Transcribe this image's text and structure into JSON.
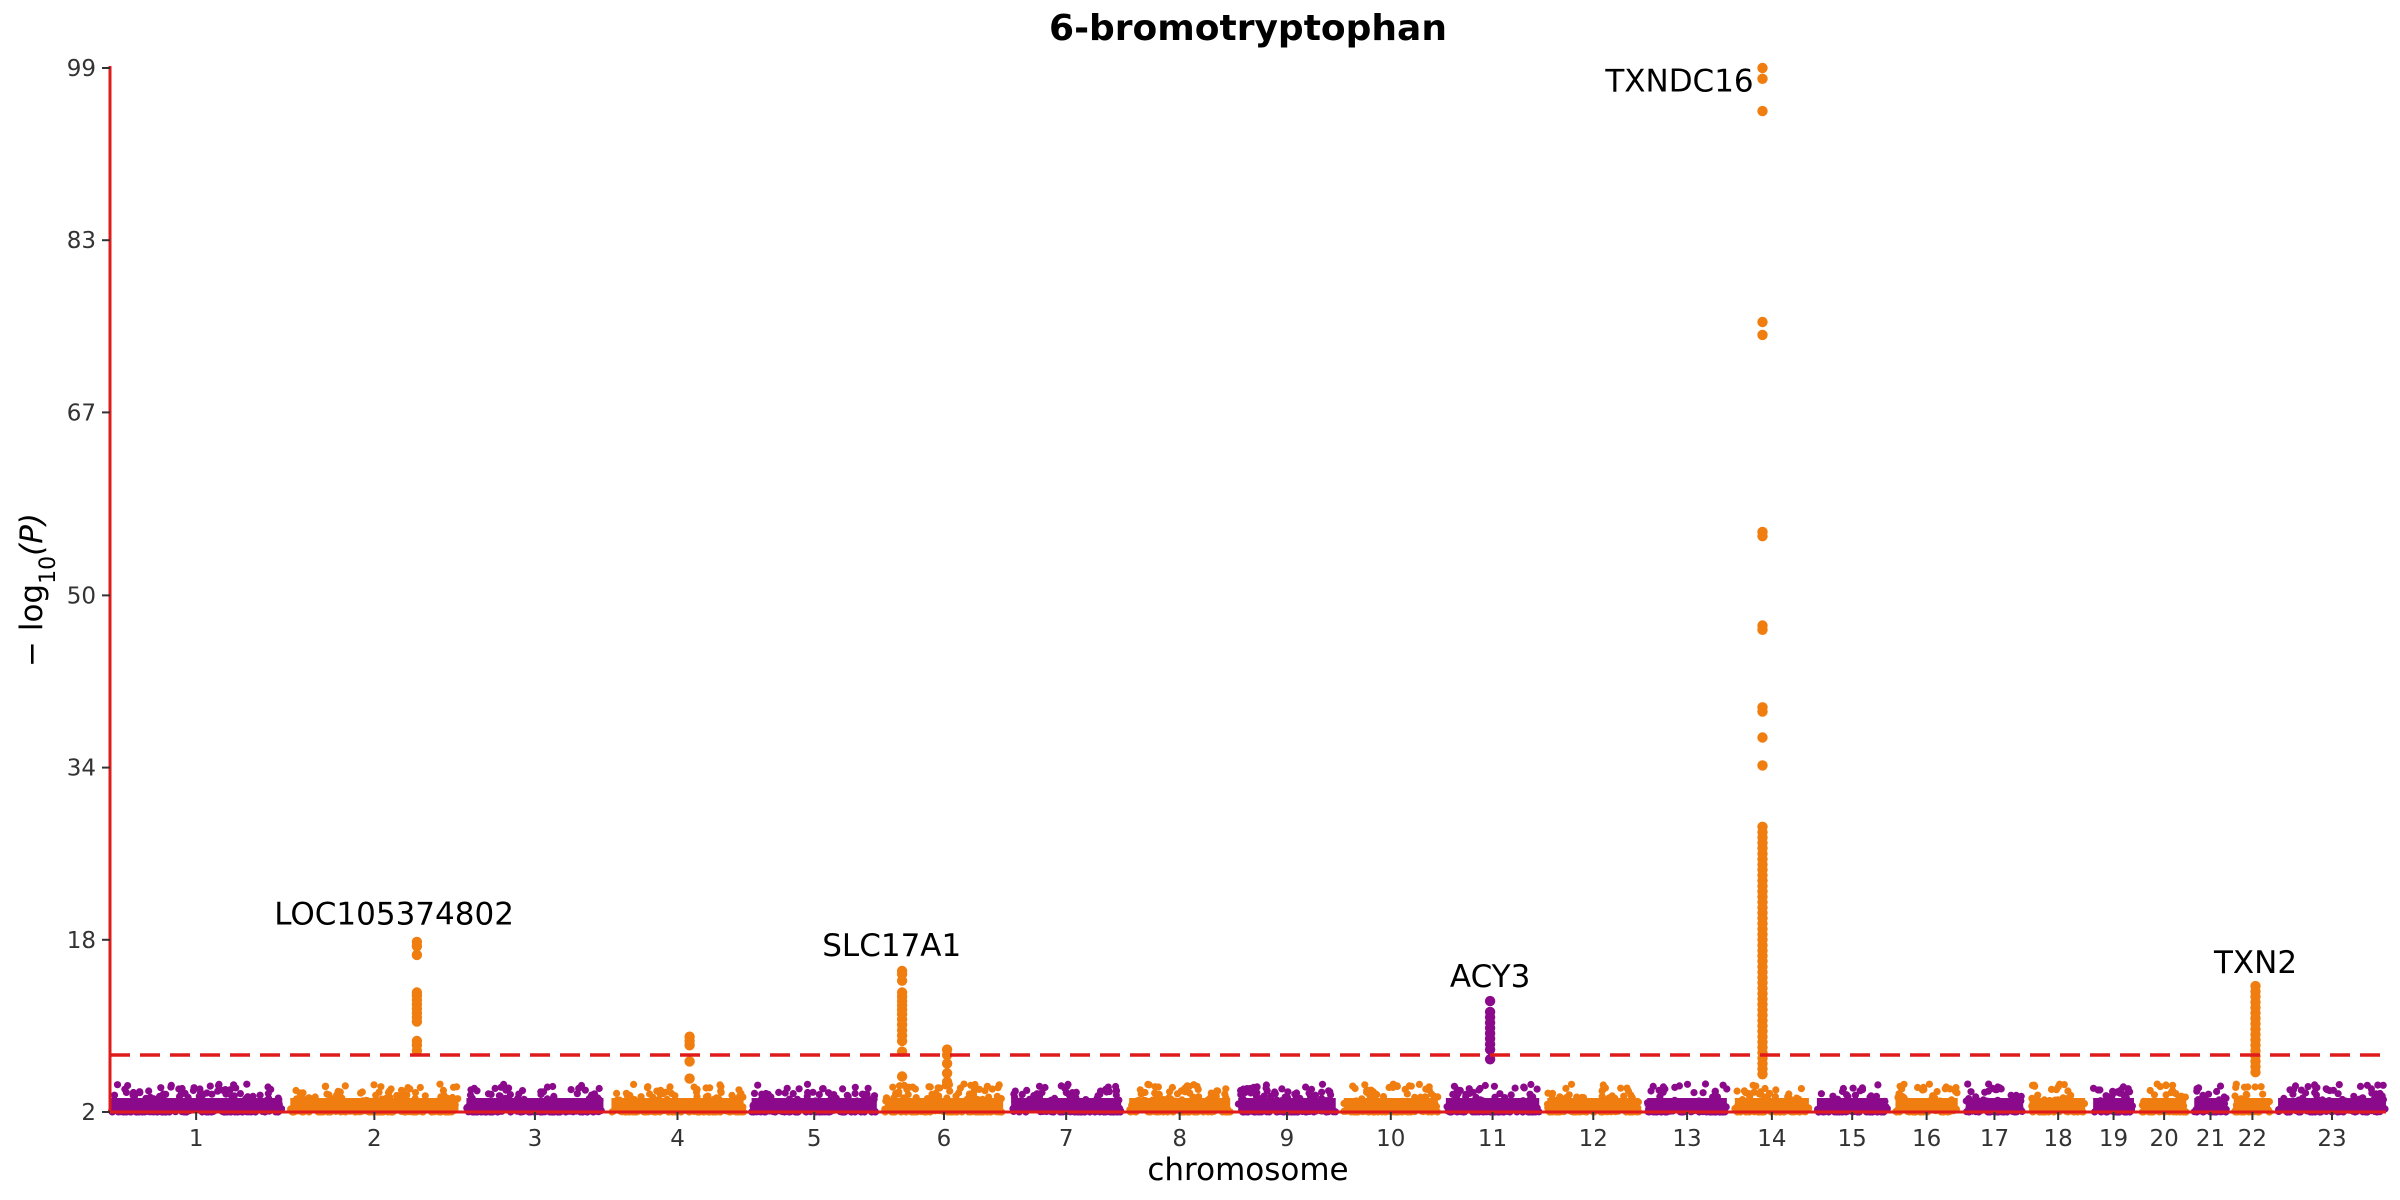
{
  "chart_data": {
    "type": "scatter",
    "subtype": "manhattan",
    "title": "6-bromotryptophan",
    "xlabel": "chromosome",
    "ylabel": "−log10(P)",
    "ylabel_parts": {
      "prefix": "− log",
      "subscript": "10",
      "suffix": "(P)"
    },
    "ylim": [
      2,
      99
    ],
    "yticks": [
      2,
      18,
      34,
      50,
      67,
      83,
      99
    ],
    "threshold": 7.3,
    "colors": {
      "odd": "#8B0A8C",
      "even": "#F07D0F",
      "axis": "#E01B1B",
      "threshold": "#E01B1B"
    },
    "chromosomes": [
      {
        "label": "1",
        "length": 249,
        "color": "odd"
      },
      {
        "label": "2",
        "length": 243,
        "color": "even"
      },
      {
        "label": "3",
        "length": 198,
        "color": "odd"
      },
      {
        "label": "4",
        "length": 191,
        "color": "even"
      },
      {
        "label": "5",
        "length": 181,
        "color": "odd"
      },
      {
        "label": "6",
        "length": 171,
        "color": "even"
      },
      {
        "label": "7",
        "length": 159,
        "color": "odd"
      },
      {
        "label": "8",
        "length": 146,
        "color": "even"
      },
      {
        "label": "9",
        "length": 141,
        "color": "odd"
      },
      {
        "label": "10",
        "length": 136,
        "color": "even"
      },
      {
        "label": "11",
        "length": 135,
        "color": "odd"
      },
      {
        "label": "12",
        "length": 133,
        "color": "even"
      },
      {
        "label": "13",
        "length": 115,
        "color": "odd"
      },
      {
        "label": "14",
        "length": 107,
        "color": "even"
      },
      {
        "label": "15",
        "length": 102,
        "color": "odd"
      },
      {
        "label": "16",
        "length": 90,
        "color": "even"
      },
      {
        "label": "17",
        "length": 83,
        "color": "odd"
      },
      {
        "label": "18",
        "length": 78,
        "color": "even"
      },
      {
        "label": "19",
        "length": 59,
        "color": "odd"
      },
      {
        "label": "20",
        "length": 64,
        "color": "even"
      },
      {
        "label": "21",
        "length": 47,
        "color": "odd"
      },
      {
        "label": "22",
        "length": 51,
        "color": "even"
      },
      {
        "label": "23",
        "length": 156,
        "color": "odd"
      }
    ],
    "peaks": [
      {
        "chrom": "2",
        "pos": 183,
        "values": [
          17.8,
          17.4,
          16.6,
          13.1,
          12.8,
          12.4,
          12.0,
          11.6,
          11.2,
          10.8,
          10.4,
          8.6,
          8.2,
          7.7
        ]
      },
      {
        "chrom": "4",
        "pos": 113,
        "values": [
          9.0,
          8.6,
          8.2,
          6.7,
          5.1
        ]
      },
      {
        "chrom": "6",
        "pos": 25,
        "values": [
          15.1,
          14.8,
          14.2,
          13.1,
          12.7,
          12.3,
          11.9,
          11.5,
          11.1,
          10.6,
          10.1,
          9.6,
          9.1,
          8.6,
          7.6,
          5.3
        ]
      },
      {
        "chrom": "6",
        "pos": 90,
        "values": [
          7.8,
          7.3,
          6.5,
          5.6,
          4.8
        ]
      },
      {
        "chrom": "11",
        "pos": 64,
        "values": [
          12.3,
          11.3,
          10.8,
          10.3,
          9.8,
          9.3,
          8.8,
          8.3,
          7.8,
          6.9
        ]
      },
      {
        "chrom": "14",
        "pos": 40,
        "values": [
          99.0,
          98.0,
          95.0,
          75.4,
          74.2,
          55.9,
          55.5,
          47.2,
          46.8,
          39.6,
          39.2,
          36.8,
          34.2,
          28.5,
          28.0,
          27.5,
          27.0,
          26.5,
          26.0,
          25.5,
          25.0,
          24.5,
          24.0,
          23.5,
          23.0,
          22.5,
          22.0,
          21.5,
          21.0,
          20.5,
          20.0,
          19.5,
          19.0,
          18.5,
          18.0,
          17.5,
          17.0,
          16.5,
          16.0,
          15.5,
          15.0,
          14.5,
          14.0,
          13.5,
          13.0,
          12.5,
          12.0,
          11.5,
          11.0,
          10.5,
          10.0,
          9.5,
          9.0,
          8.5,
          8.0,
          7.5,
          7.0,
          6.5,
          6.0,
          5.5
        ]
      },
      {
        "chrom": "22",
        "pos": 30,
        "values": [
          13.7,
          13.2,
          12.7,
          12.2,
          11.7,
          11.2,
          10.7,
          10.2,
          9.7,
          9.2,
          8.7,
          8.2,
          7.7,
          7.2,
          6.7,
          6.2,
          5.7
        ]
      }
    ],
    "annotations": [
      {
        "text": "LOC105374802",
        "chrom": "2",
        "pos": 150,
        "y": 19.4
      },
      {
        "text": "SLC17A1",
        "chrom": "6",
        "pos": 10,
        "y": 16.5
      },
      {
        "text": "ACY3",
        "chrom": "11",
        "pos": 64,
        "y": 13.6
      },
      {
        "text": "TXNDC16",
        "chrom": "14",
        "pos": -80,
        "y": 96.8
      },
      {
        "text": "TXN2",
        "chrom": "22",
        "pos": 30,
        "y": 14.9
      }
    ]
  }
}
